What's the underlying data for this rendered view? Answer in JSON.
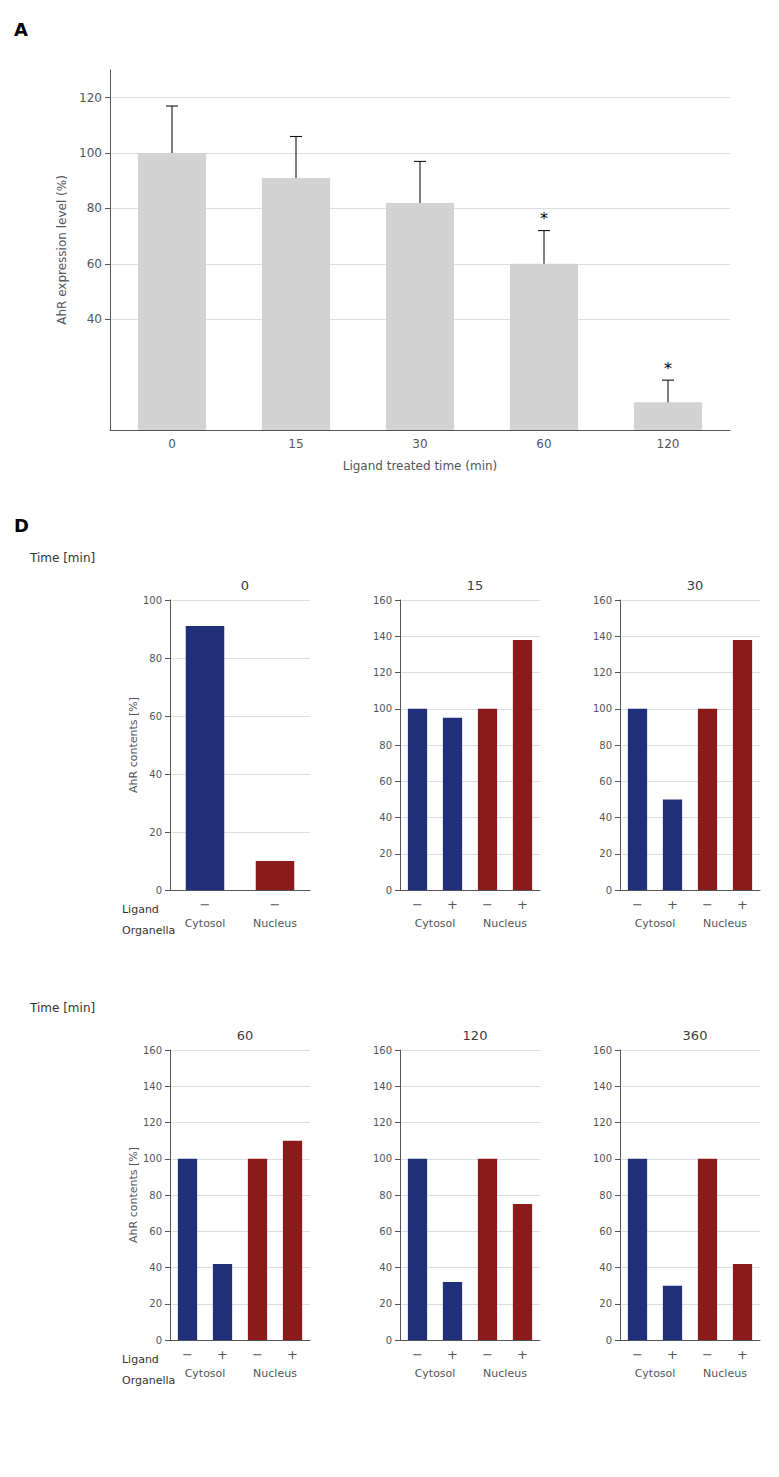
{
  "chart_data": [
    {
      "type": "bar",
      "panel_label": "A",
      "categories": [
        "0",
        "15",
        "30",
        "60",
        "120"
      ],
      "values": [
        100,
        91,
        82,
        60,
        10
      ],
      "errors": [
        17,
        15,
        15,
        12,
        8
      ],
      "color": "#d3d3d3",
      "xlabel": "Ligand treated time (min)",
      "ylabel": "AhR expression level (%)",
      "ylim": [
        0,
        130
      ],
      "yticks": [
        40,
        60,
        80,
        100,
        120
      ],
      "grid": true,
      "annotations": [
        {
          "text": "*",
          "x": "60"
        },
        {
          "text": "*",
          "x": "120"
        }
      ]
    },
    {
      "type": "bar",
      "panel_label": "D",
      "row_label": "Time [min]",
      "title": "0",
      "ylabel": "AhR contents [%]",
      "category_label": "Ligand",
      "group_label": "Organella",
      "categories": [
        "−",
        "−"
      ],
      "groups": [
        "Cytosol",
        "Nucleus"
      ],
      "values": [
        91,
        10
      ],
      "colors": [
        "#1f2f7a",
        "#8b1a1a"
      ],
      "ylim": [
        0,
        100
      ],
      "yticks": [
        0,
        20,
        40,
        60,
        80,
        100
      ],
      "grid": true
    },
    {
      "type": "bar",
      "title": "15",
      "categories": [
        "−",
        "+",
        "−",
        "+"
      ],
      "groups": [
        "Cytosol",
        "Nucleus"
      ],
      "values": [
        100,
        95,
        100,
        138
      ],
      "colors": [
        "#1f2f7a",
        "#1f2f7a",
        "#8b1a1a",
        "#8b1a1a"
      ],
      "ylim": [
        0,
        160
      ],
      "yticks": [
        0,
        20,
        40,
        60,
        80,
        100,
        120,
        140,
        160
      ],
      "grid": true
    },
    {
      "type": "bar",
      "title": "30",
      "categories": [
        "−",
        "+",
        "−",
        "+"
      ],
      "groups": [
        "Cytosol",
        "Nucleus"
      ],
      "values": [
        100,
        50,
        100,
        138
      ],
      "colors": [
        "#1f2f7a",
        "#1f2f7a",
        "#8b1a1a",
        "#8b1a1a"
      ],
      "ylim": [
        0,
        160
      ],
      "yticks": [
        0,
        20,
        40,
        60,
        80,
        100,
        120,
        140,
        160
      ],
      "grid": true
    },
    {
      "type": "bar",
      "row_label": "Time [min]",
      "title": "60",
      "ylabel": "AhR contents [%]",
      "category_label": "Ligand",
      "group_label": "Organella",
      "categories": [
        "−",
        "+",
        "−",
        "+"
      ],
      "groups": [
        "Cytosol",
        "Nucleus"
      ],
      "values": [
        100,
        42,
        100,
        110
      ],
      "colors": [
        "#1f2f7a",
        "#1f2f7a",
        "#8b1a1a",
        "#8b1a1a"
      ],
      "ylim": [
        0,
        160
      ],
      "yticks": [
        0,
        20,
        40,
        60,
        80,
        100,
        120,
        140,
        160
      ],
      "grid": true
    },
    {
      "type": "bar",
      "title": "120",
      "categories": [
        "−",
        "+",
        "−",
        "+"
      ],
      "groups": [
        "Cytosol",
        "Nucleus"
      ],
      "values": [
        100,
        32,
        100,
        75
      ],
      "colors": [
        "#1f2f7a",
        "#1f2f7a",
        "#8b1a1a",
        "#8b1a1a"
      ],
      "ylim": [
        0,
        160
      ],
      "yticks": [
        0,
        20,
        40,
        60,
        80,
        100,
        120,
        140,
        160
      ],
      "grid": true
    },
    {
      "type": "bar",
      "title": "360",
      "categories": [
        "−",
        "+",
        "−",
        "+"
      ],
      "groups": [
        "Cytosol",
        "Nucleus"
      ],
      "values": [
        100,
        30,
        100,
        42
      ],
      "colors": [
        "#1f2f7a",
        "#1f2f7a",
        "#8b1a1a",
        "#8b1a1a"
      ],
      "ylim": [
        0,
        160
      ],
      "yticks": [
        0,
        20,
        40,
        60,
        80,
        100,
        120,
        140,
        160
      ],
      "grid": true
    }
  ]
}
